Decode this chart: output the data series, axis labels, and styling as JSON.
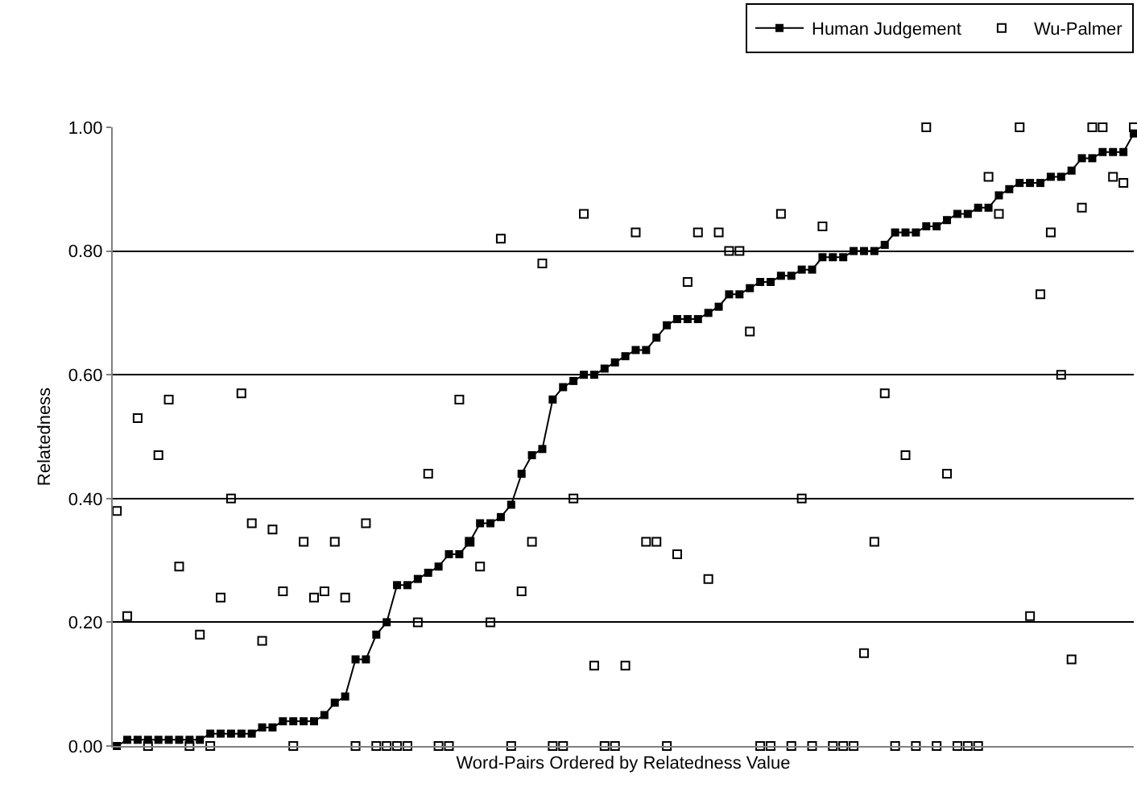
{
  "chart_data": {
    "type": "line",
    "xlabel": "Word-Pairs Ordered by Relatedness Value",
    "ylabel": "Relatedness",
    "categories": [
      null,
      null,
      null,
      null,
      null,
      null,
      null,
      null,
      null,
      null,
      null,
      null,
      null,
      null,
      null,
      null,
      null,
      null,
      null,
      null,
      null,
      null,
      null,
      null,
      null,
      null,
      null,
      null,
      null,
      null,
      null,
      null,
      null,
      null,
      null,
      null,
      null,
      null,
      null,
      null,
      null,
      null,
      null,
      null,
      null,
      null,
      null,
      null,
      null,
      null,
      null,
      null,
      null,
      null,
      null,
      null,
      null,
      null,
      null,
      null,
      null,
      null,
      null,
      null,
      null,
      null,
      null,
      null,
      null,
      null,
      null,
      null,
      null,
      null,
      null,
      null,
      null,
      null,
      null,
      null,
      null,
      null,
      null,
      null,
      null,
      null,
      null,
      null,
      null,
      null,
      null,
      null,
      null,
      null,
      null,
      null,
      null,
      null,
      null
    ],
    "series": [
      {
        "name": "Human Judgement",
        "color": "#000000",
        "marker": "square",
        "values": [
          0.0,
          0.01,
          0.01,
          0.01,
          0.01,
          0.01,
          0.01,
          0.01,
          0.01,
          0.02,
          0.02,
          0.02,
          0.02,
          0.02,
          0.03,
          0.03,
          0.04,
          0.04,
          0.04,
          0.04,
          0.05,
          0.07,
          0.08,
          0.14,
          0.14,
          0.18,
          0.2,
          0.26,
          0.26,
          0.27,
          0.28,
          0.29,
          0.31,
          0.31,
          0.33,
          0.36,
          0.36,
          0.37,
          0.39,
          0.44,
          0.47,
          0.48,
          0.56,
          0.58,
          0.59,
          0.6,
          0.6,
          0.61,
          0.62,
          0.63,
          0.64,
          0.64,
          0.66,
          0.68,
          0.69,
          0.69,
          0.69,
          0.7,
          0.71,
          0.73,
          0.73,
          0.74,
          0.75,
          0.75,
          0.76,
          0.76,
          0.77,
          0.77,
          0.79,
          0.79,
          0.79,
          0.8,
          0.8,
          0.8,
          0.81,
          0.83,
          0.83,
          0.83,
          0.84,
          0.84,
          0.85,
          0.86,
          0.86,
          0.87,
          0.87,
          0.89,
          0.9,
          0.91,
          0.91,
          0.91,
          0.92,
          0.92,
          0.93,
          0.95,
          0.95,
          0.96,
          0.96,
          0.96,
          0.99
        ]
      },
      {
        "name": "Wu-Palmer",
        "type": "scatter",
        "color": "#000000",
        "marker": "square",
        "values": [
          0.38,
          0.21,
          0.53,
          0,
          0.47,
          0.56,
          0.29,
          0,
          0.18,
          0,
          0.24,
          0.4,
          0.57,
          0.36,
          0.17,
          0.35,
          0.25,
          0,
          0.33,
          0.24,
          0.25,
          0.33,
          0.24,
          0,
          0.36,
          0,
          0,
          0,
          0,
          0.2,
          0.44,
          0,
          0,
          0.56,
          0.33,
          0.29,
          0.2,
          0.82,
          0,
          0.25,
          0.33,
          0.78,
          0,
          0,
          0.4,
          0.86,
          0.13,
          0,
          0,
          0.13,
          0.83,
          0.33,
          0.33,
          0,
          0.31,
          0.75,
          0.83,
          0.27,
          0.83,
          0.8,
          0.8,
          0.67,
          0,
          0,
          0.86,
          0,
          0.4,
          0,
          0.84,
          0,
          0,
          0,
          0.15,
          0.33,
          0.57,
          0,
          0.47,
          0,
          1.0,
          0,
          0.44,
          0,
          0,
          0,
          0.92,
          0.86,
          null,
          1.0,
          0.21,
          0.73,
          0.83,
          0.6,
          0.14,
          0.87,
          1.0,
          1.0,
          0.92,
          0.91,
          1.0
        ]
      }
    ],
    "ylim": [
      0,
      1.0
    ],
    "yticks": [
      {
        "value": 0,
        "label": "0.00"
      },
      {
        "value": 0.2,
        "label": "0.20"
      },
      {
        "value": 0.4,
        "label": "0.40"
      },
      {
        "value": 0.6,
        "label": "0.60"
      },
      {
        "value": 0.8,
        "label": "0.80"
      },
      {
        "value": 1.0,
        "label": "1.00"
      }
    ],
    "grid": "y",
    "legend": "top right",
    "line_style": "solid"
  }
}
